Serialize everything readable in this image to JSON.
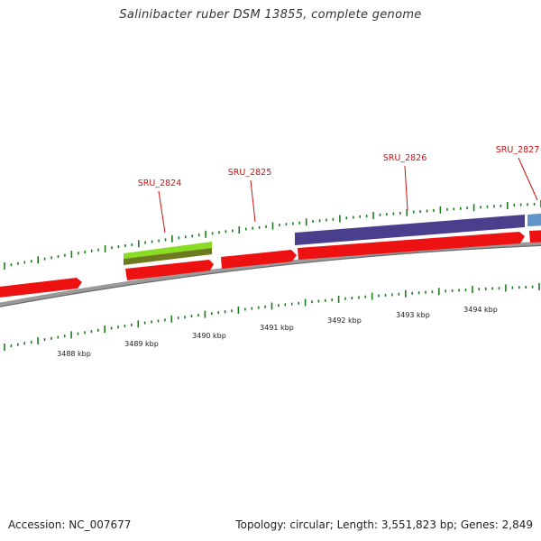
{
  "title": "Salinibacter ruber DSM 13855, complete genome",
  "footer": {
    "accession": "Accession: NC_007677",
    "summary": "Topology: circular; Length: 3,551,823 bp; Genes: 2,849"
  },
  "colors": {
    "forward_cds": "#ee1111",
    "reverse_green": "#88dd22",
    "reverse_olive": "#6e7a20",
    "reverse_purple": "#4a3f8c",
    "reverse_blue": "#5f95c8",
    "backbone": "#9a9a9a",
    "ticks": "#1f7a1f",
    "gene_label": "#cc1111"
  },
  "chart_data": {
    "type": "genome-map",
    "unit": "kbp",
    "scale_labels": [
      "3488 kbp",
      "3489 kbp",
      "3490 kbp",
      "3491 kbp",
      "3492 kbp",
      "3493 kbp",
      "3494 kbp"
    ],
    "genes": [
      {
        "label": "SRU_2824"
      },
      {
        "label": "SRU_2825"
      },
      {
        "label": "SRU_2826"
      },
      {
        "label": "SRU_2827"
      }
    ]
  }
}
